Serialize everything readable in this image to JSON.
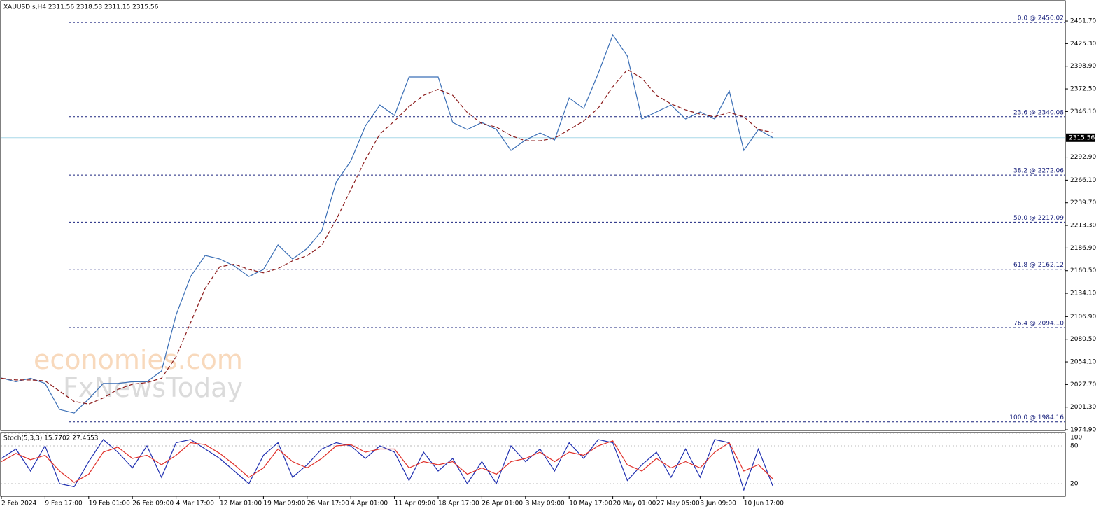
{
  "chart_data": [
    {
      "type": "line",
      "title": "XAUUSD.s,H4  2311.56 2318.53 2311.15 2315.56",
      "categories": [
        "2 Feb 2024",
        null,
        null,
        "9 Feb 17:00",
        null,
        null,
        "19 Feb 01:00",
        null,
        null,
        "26 Feb 09:00",
        null,
        null,
        "4 Mar 17:00",
        null,
        null,
        "12 Mar 01:00",
        null,
        null,
        "19 Mar 09:00",
        null,
        null,
        "26 Mar 17:00",
        null,
        null,
        "4 Apr 01:00",
        null,
        null,
        "11 Apr 09:00",
        null,
        null,
        "18 Apr 17:00",
        null,
        null,
        "26 Apr 01:00",
        null,
        null,
        "3 May 09:00",
        null,
        null,
        "10 May 17:00",
        null,
        null,
        "20 May 01:00",
        null,
        null,
        "27 May 05:00",
        null,
        null,
        "3 Jun 09:00",
        null,
        null,
        "10 Jun 17:00",
        null,
        null
      ],
      "series": [
        {
          "name": "XAUUSD.s",
          "color": "#3b6fb6",
          "values": [
            2035.3,
            2031,
            2035,
            2029,
            1998.6,
            1994.5,
            2010.8,
            2029,
            2029,
            2031,
            2031,
            2043.5,
            2108.8,
            2153.7,
            2178.2,
            2174.1,
            2165.9,
            2153.7,
            2161.9,
            2190.5,
            2174.1,
            2186.4,
            2206.8,
            2263.9,
            2288.4,
            2329.2,
            2353.7,
            2341.5,
            2386.4,
            2386.4,
            2386.4,
            2333.3,
            2325.2,
            2333.3,
            2325.2,
            2300.7,
            2312.9,
            2321.1,
            2312.9,
            2361.9,
            2349.6,
            2390.5,
            2435.4,
            2410.9,
            2337.4,
            2345.6,
            2353.7,
            2337.4,
            2345.6,
            2337.4,
            2370.1,
            2300.7,
            2325.2,
            2315.56
          ]
        },
        {
          "color": "#8b1a1a",
          "dashed": true,
          "values": [
            2035,
            2033,
            2033,
            2032,
            2020,
            2008,
            2005,
            2012,
            2022,
            2028,
            2030,
            2035,
            2060,
            2100,
            2140,
            2165,
            2168,
            2162,
            2158,
            2163,
            2172,
            2178,
            2190,
            2220,
            2255,
            2290,
            2320,
            2335,
            2352,
            2365,
            2372,
            2365,
            2345,
            2332,
            2328,
            2318,
            2312,
            2312,
            2315,
            2325,
            2335,
            2350,
            2375,
            2395,
            2385,
            2365,
            2355,
            2348,
            2343,
            2340,
            2345,
            2340,
            2325,
            2322
          ]
        }
      ],
      "last_price": 2315.56,
      "ylim": [
        1972.5,
        2459.9
      ],
      "yticks": [
        {
          "value": 2451.7,
          "label": "2451.70"
        },
        {
          "value": 2425.3,
          "label": "2425.30"
        },
        {
          "value": 2398.9,
          "label": "2398.90"
        },
        {
          "value": 2372.5,
          "label": "2372.50"
        },
        {
          "value": 2346.1,
          "label": "2346.10"
        },
        {
          "value": 2292.9,
          "label": "2292.90"
        },
        {
          "value": 2266.1,
          "label": "2266.10"
        },
        {
          "value": 2239.7,
          "label": "2239.70"
        },
        {
          "value": 2213.3,
          "label": "2213.30"
        },
        {
          "value": 2186.9,
          "label": "2186.90"
        },
        {
          "value": 2160.5,
          "label": "2160.50"
        },
        {
          "value": 2134.1,
          "label": "2134.10"
        },
        {
          "value": 2106.9,
          "label": "2106.90"
        },
        {
          "value": 2080.5,
          "label": "2080.50"
        },
        {
          "value": 2054.1,
          "label": "2054.10"
        },
        {
          "value": 2027.7,
          "label": "2027.70"
        },
        {
          "value": 2001.3,
          "label": "2001.30"
        },
        {
          "value": 1974.9,
          "label": "1974.90"
        }
      ],
      "levels": [
        {
          "value": 2450.02,
          "label": "0.0 @ 2450.02"
        },
        {
          "value": 2340.08,
          "label": "23.6 @ 2340.08"
        },
        {
          "value": 2272.06,
          "label": "38.2 @ 2272.06"
        },
        {
          "value": 2217.09,
          "label": "50.0 @ 2217.09"
        },
        {
          "value": 2162.12,
          "label": "61.8 @ 2162.12"
        },
        {
          "value": 2094.1,
          "label": "76.4 @ 2094.10"
        },
        {
          "value": 1984.16,
          "label": "100.0 @ 1984.16"
        }
      ],
      "watermarks": [
        "economies.com",
        "FxNewsToday"
      ]
    },
    {
      "type": "line",
      "title": "Stoch(5,3,3) 15.7702 27.4553",
      "series": [
        {
          "color": "#1f2fb0",
          "values": [
            60,
            75,
            40,
            80,
            20,
            15,
            55,
            90,
            70,
            45,
            80,
            30,
            85,
            90,
            75,
            60,
            40,
            20,
            65,
            85,
            30,
            50,
            75,
            85,
            80,
            60,
            80,
            70,
            25,
            70,
            40,
            60,
            20,
            55,
            20,
            80,
            55,
            75,
            40,
            85,
            60,
            90,
            85,
            25,
            50,
            70,
            30,
            75,
            30,
            90,
            85,
            10,
            75,
            15.7702
          ]
        },
        {
          "color": "#e0302a",
          "values": [
            55,
            68,
            58,
            65,
            40,
            22,
            35,
            70,
            78,
            60,
            65,
            50,
            65,
            85,
            82,
            68,
            50,
            30,
            45,
            75,
            55,
            45,
            60,
            80,
            82,
            70,
            75,
            75,
            45,
            55,
            50,
            55,
            35,
            45,
            35,
            55,
            60,
            70,
            55,
            70,
            65,
            80,
            88,
            50,
            40,
            60,
            45,
            55,
            45,
            70,
            85,
            40,
            50,
            27.4553
          ]
        }
      ],
      "ylim": [
        0,
        100
      ],
      "yticks": [
        100,
        80,
        20
      ]
    }
  ]
}
